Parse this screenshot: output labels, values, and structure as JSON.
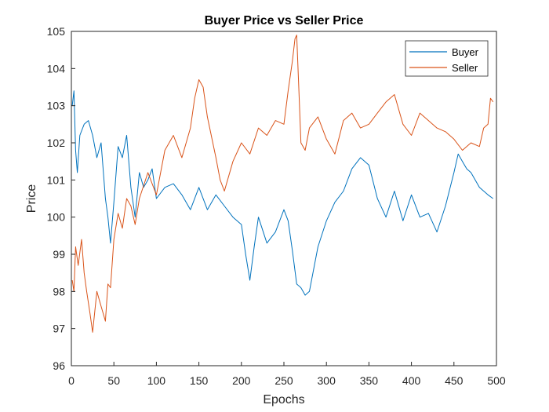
{
  "chart_data": {
    "type": "line",
    "title": "Buyer Price vs Seller Price",
    "xlabel": "Epochs",
    "ylabel": "Price",
    "xlim": [
      0,
      500
    ],
    "ylim": [
      96,
      105
    ],
    "xticks": [
      0,
      50,
      100,
      150,
      200,
      250,
      300,
      350,
      400,
      450,
      500
    ],
    "yticks": [
      96,
      97,
      98,
      99,
      100,
      101,
      102,
      103,
      104,
      105
    ],
    "xtick_labels": [
      "0",
      "50",
      "100",
      "150",
      "200",
      "250",
      "300",
      "350",
      "400",
      "450",
      "500"
    ],
    "ytick_labels": [
      "96",
      "97",
      "98",
      "99",
      "100",
      "101",
      "102",
      "103",
      "104",
      "105"
    ],
    "grid": false,
    "legend_position": "top-right",
    "series": [
      {
        "name": "Buyer",
        "color": "#0072BD",
        "x": [
          1,
          3,
          5,
          7,
          10,
          15,
          20,
          25,
          30,
          35,
          40,
          43,
          46,
          50,
          55,
          60,
          65,
          70,
          75,
          80,
          85,
          90,
          95,
          100,
          110,
          120,
          130,
          140,
          150,
          160,
          170,
          180,
          190,
          200,
          205,
          210,
          215,
          220,
          230,
          240,
          250,
          255,
          260,
          265,
          270,
          275,
          280,
          290,
          300,
          310,
          320,
          330,
          340,
          350,
          360,
          370,
          380,
          390,
          400,
          410,
          420,
          430,
          440,
          450,
          455,
          460,
          465,
          470,
          480,
          490,
          496
        ],
        "y": [
          103.0,
          103.4,
          101.8,
          101.2,
          102.2,
          102.5,
          102.6,
          102.2,
          101.6,
          102.0,
          100.5,
          100.0,
          99.3,
          100.4,
          101.9,
          101.6,
          102.2,
          100.8,
          100.0,
          101.2,
          100.8,
          101.0,
          101.3,
          100.5,
          100.8,
          100.9,
          100.6,
          100.2,
          100.8,
          100.2,
          100.6,
          100.3,
          100.0,
          99.8,
          99.0,
          98.3,
          99.2,
          100.0,
          99.3,
          99.6,
          100.2,
          99.9,
          99.1,
          98.2,
          98.1,
          97.9,
          98.0,
          99.2,
          99.9,
          100.4,
          100.7,
          101.3,
          101.6,
          101.4,
          100.5,
          100.0,
          100.7,
          99.9,
          100.6,
          100.0,
          100.1,
          99.6,
          100.3,
          101.2,
          101.7,
          101.5,
          101.3,
          101.2,
          100.8,
          100.6,
          100.5
        ]
      },
      {
        "name": "Seller",
        "color": "#D95319",
        "x": [
          1,
          3,
          5,
          8,
          12,
          15,
          18,
          22,
          25,
          30,
          35,
          40,
          43,
          46,
          50,
          55,
          60,
          65,
          70,
          75,
          80,
          90,
          100,
          110,
          120,
          130,
          140,
          145,
          150,
          155,
          160,
          170,
          175,
          180,
          190,
          200,
          210,
          220,
          230,
          240,
          250,
          255,
          260,
          263,
          265,
          268,
          270,
          275,
          280,
          290,
          300,
          310,
          320,
          330,
          340,
          350,
          360,
          370,
          380,
          390,
          400,
          410,
          420,
          430,
          440,
          450,
          460,
          470,
          480,
          485,
          490,
          493,
          496
        ],
        "y": [
          98.3,
          98.0,
          99.2,
          98.7,
          99.4,
          98.5,
          98.0,
          97.4,
          96.9,
          98.0,
          97.6,
          97.2,
          98.2,
          98.1,
          99.4,
          100.1,
          99.7,
          100.5,
          100.3,
          99.8,
          100.5,
          101.2,
          100.6,
          101.8,
          102.2,
          101.6,
          102.4,
          103.2,
          103.7,
          103.5,
          102.7,
          101.6,
          101.0,
          100.7,
          101.5,
          102.0,
          101.7,
          102.4,
          102.2,
          102.6,
          102.5,
          103.4,
          104.2,
          104.8,
          104.9,
          103.2,
          102.0,
          101.8,
          102.4,
          102.7,
          102.1,
          101.7,
          102.6,
          102.8,
          102.4,
          102.5,
          102.8,
          103.1,
          103.3,
          102.5,
          102.2,
          102.8,
          102.6,
          102.4,
          102.3,
          102.1,
          101.8,
          102.0,
          101.9,
          102.4,
          102.5,
          103.2,
          103.1
        ]
      }
    ]
  }
}
